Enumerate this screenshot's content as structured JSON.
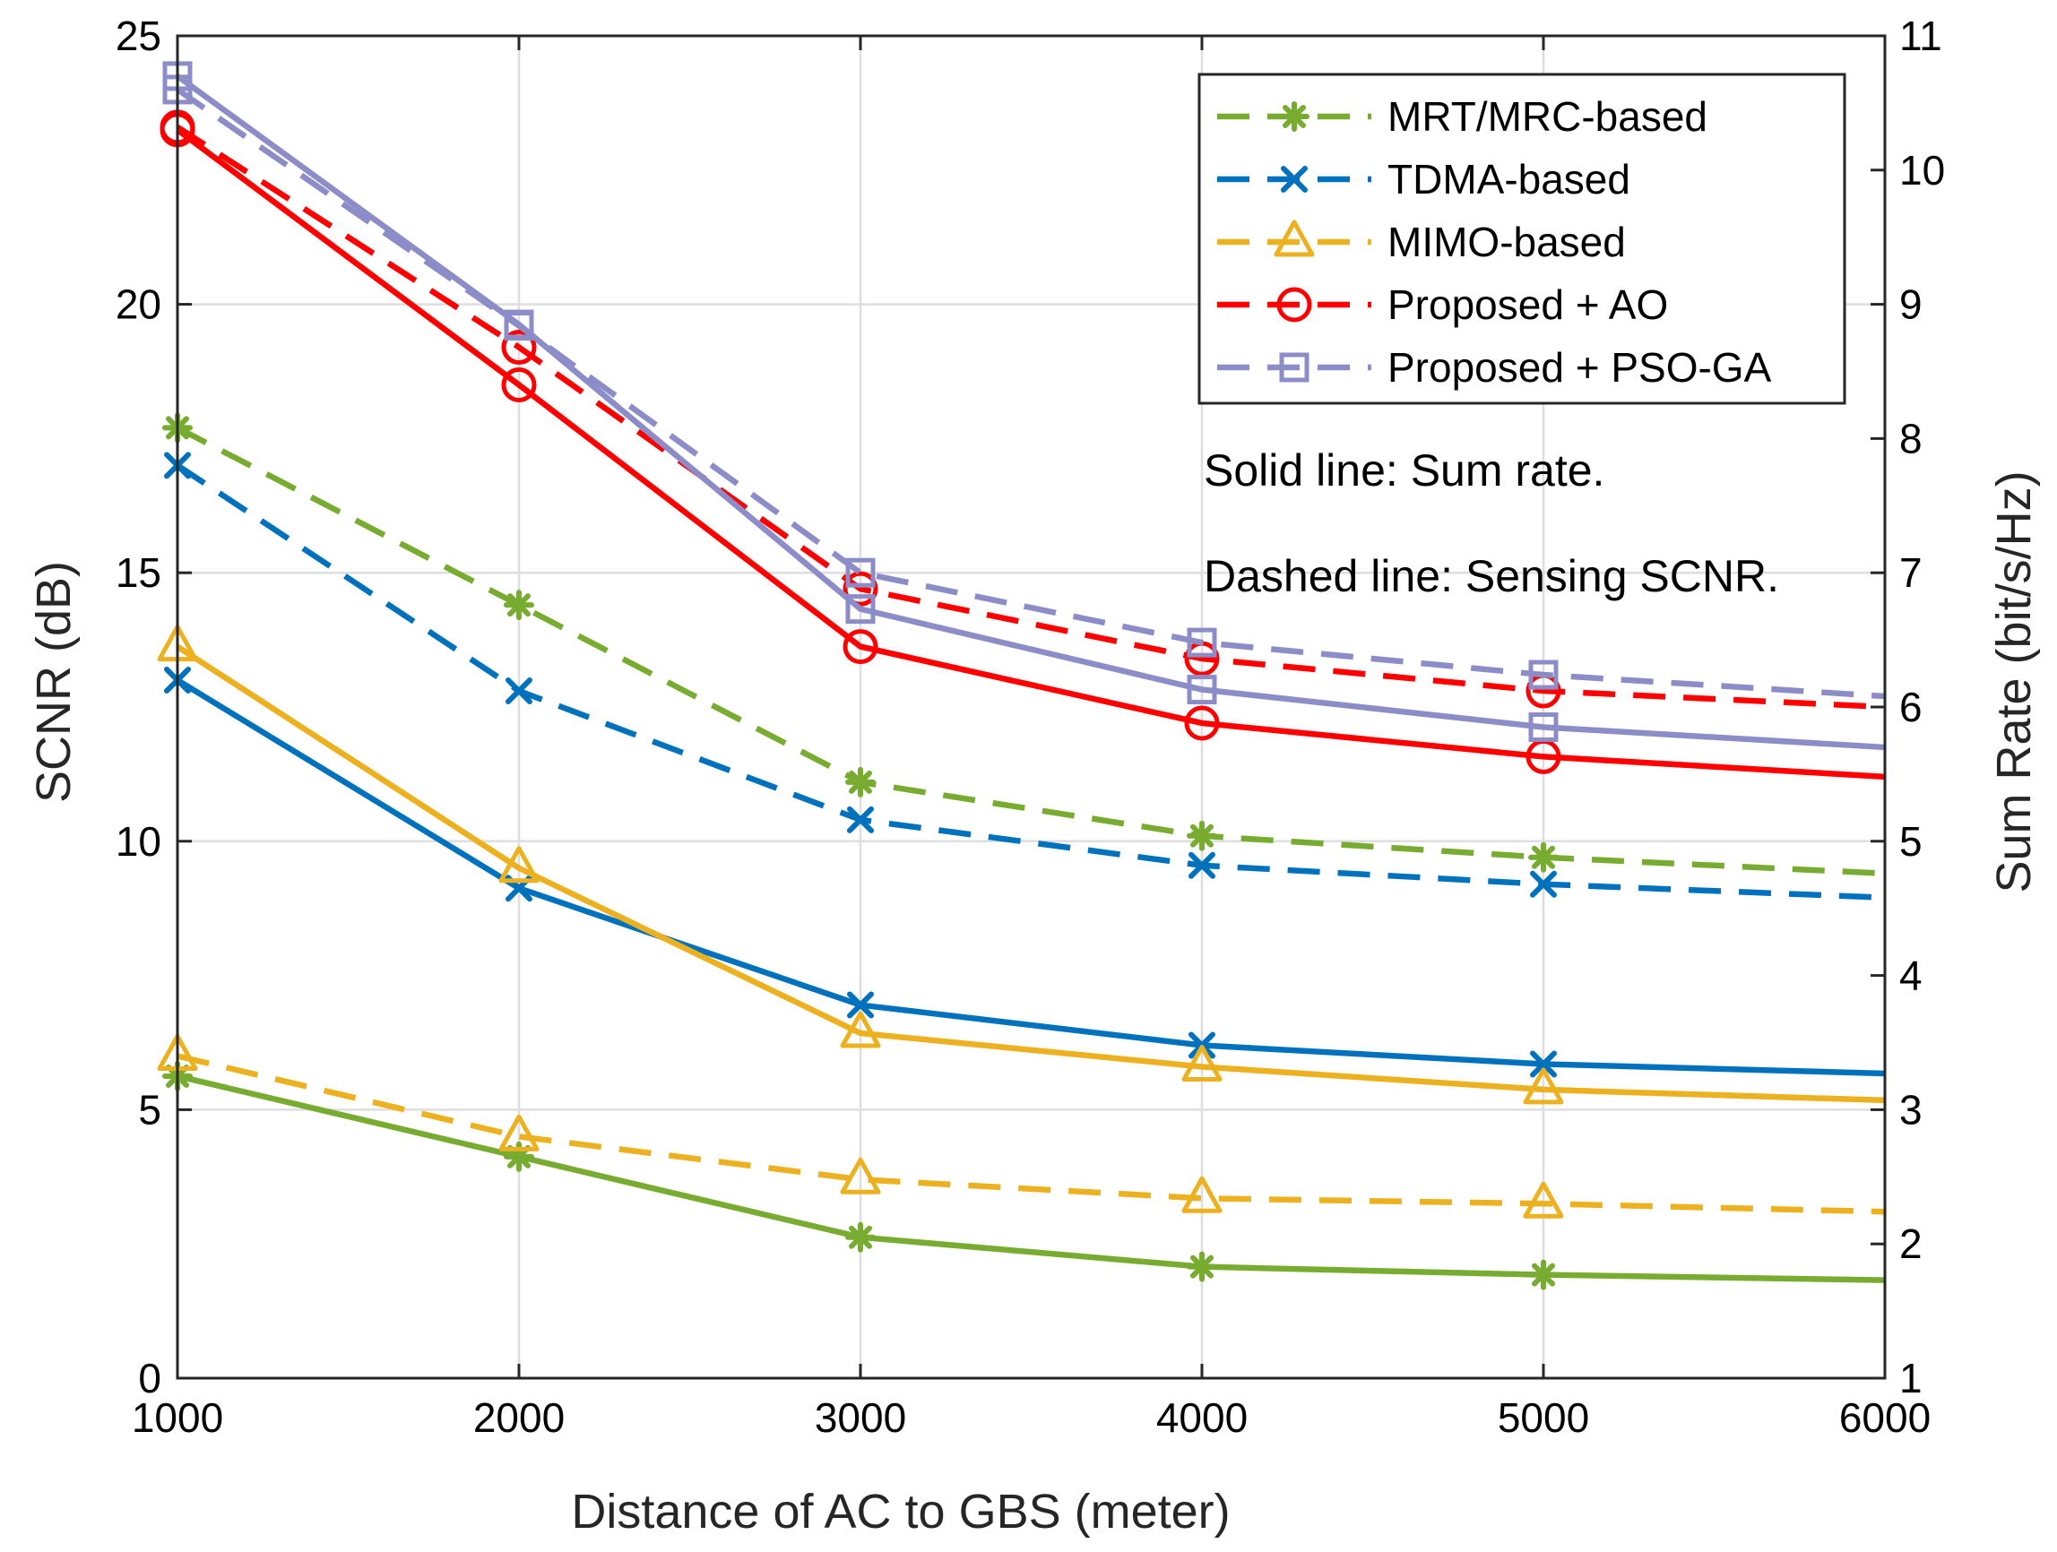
{
  "chart_data": {
    "type": "line",
    "xlabel": "Distance of AC to GBS (meter)",
    "ylabel_left": "SCNR (dB)",
    "ylabel_right": "Sum Rate (bit/s/Hz)",
    "x": [
      1000,
      2000,
      3000,
      4000,
      5000,
      6000
    ],
    "x_ticks": [
      "1000",
      "2000",
      "3000",
      "4000",
      "5000",
      "6000"
    ],
    "xlim": [
      1000,
      6000
    ],
    "ylim_left": [
      0,
      25
    ],
    "y_ticks_left": [
      "0",
      "5",
      "10",
      "15",
      "20",
      "25"
    ],
    "ylim_right": [
      1,
      11
    ],
    "y_ticks_right": [
      "1",
      "2",
      "3",
      "4",
      "5",
      "6",
      "7",
      "8",
      "9",
      "10",
      "11"
    ],
    "grid": true,
    "legend_position": "top-right",
    "annotations": [
      "Solid line: Sum rate.",
      "Dashed line: Sensing SCNR."
    ],
    "series": [
      {
        "name": "MRT/MRC-based",
        "color": "#77AC30",
        "marker": "asterisk",
        "scnr_db": [
          17.7,
          14.4,
          11.1,
          10.1,
          9.7,
          9.4
        ],
        "sum_rate": [
          3.25,
          2.65,
          2.05,
          1.83,
          1.77,
          1.73
        ]
      },
      {
        "name": "TDMA-based",
        "color": "#0072BD",
        "marker": "x",
        "scnr_db": [
          17.0,
          12.8,
          10.4,
          9.55,
          9.2,
          8.95
        ],
        "sum_rate": [
          6.2,
          4.65,
          3.78,
          3.48,
          3.34,
          3.27
        ]
      },
      {
        "name": "MIMO-based",
        "color": "#EDB120",
        "marker": "triangle",
        "scnr_db": [
          6.0,
          4.5,
          3.7,
          3.35,
          3.25,
          3.1
        ],
        "sum_rate": [
          6.45,
          4.8,
          3.57,
          3.32,
          3.15,
          3.07
        ]
      },
      {
        "name": "Proposed + AO",
        "color": "#FF0000",
        "marker": "circle",
        "scnr_db": [
          23.3,
          19.2,
          14.7,
          13.4,
          12.8,
          12.5
        ],
        "sum_rate": [
          10.3,
          8.4,
          6.45,
          5.88,
          5.63,
          5.48
        ]
      },
      {
        "name": "Proposed + PSO-GA",
        "color": "#8C8CC8",
        "marker": "square",
        "scnr_db": [
          24.0,
          19.6,
          15.0,
          13.7,
          13.1,
          12.7
        ],
        "sum_rate": [
          10.7,
          8.85,
          6.73,
          6.13,
          5.85,
          5.7
        ]
      }
    ]
  }
}
